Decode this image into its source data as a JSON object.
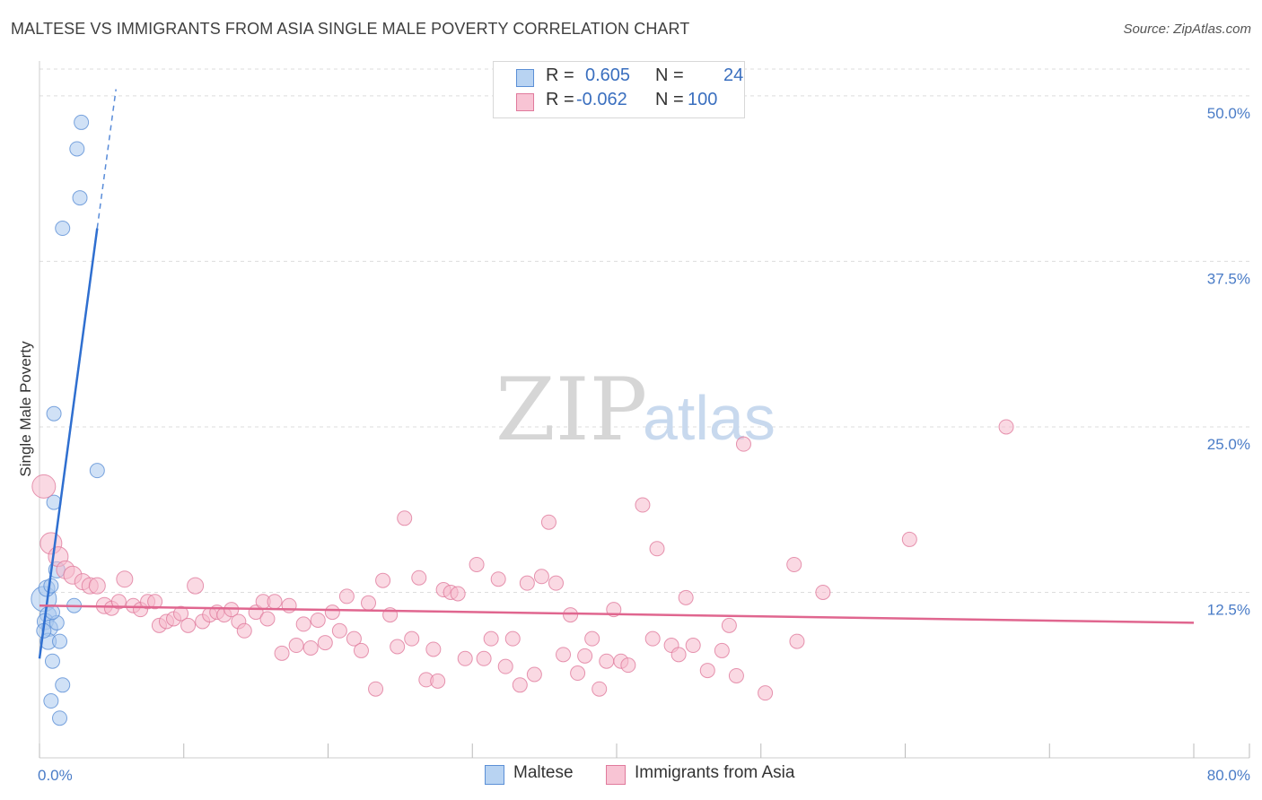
{
  "title": "MALTESE VS IMMIGRANTS FROM ASIA SINGLE MALE POVERTY CORRELATION CHART",
  "source": "Source: ZipAtlas.com",
  "watermark": {
    "zip": "ZIP",
    "atlas": "atlas"
  },
  "legend_top": {
    "r_label": "R =",
    "n_label": "N =",
    "rows": [
      {
        "r": "0.605",
        "n": "24",
        "color": "#a9c8ef",
        "edge": "#5b8fd6"
      },
      {
        "r": "-0.062",
        "n": "100",
        "color": "#f6b9cc",
        "edge": "#e07a9c"
      }
    ]
  },
  "legend_bottom": [
    {
      "label": "Maltese",
      "color": "#b8d3f2",
      "edge": "#5b8fd6"
    },
    {
      "label": "Immigrants from Asia",
      "color": "#f8c4d4",
      "edge": "#e07a9c"
    }
  ],
  "chart_data": {
    "type": "scatter",
    "title": "MALTESE VS IMMIGRANTS FROM ASIA SINGLE MALE POVERTY CORRELATION CHART",
    "xlabel": "",
    "ylabel": "Single Male Poverty",
    "xlim": [
      0,
      80
    ],
    "ylim": [
      0,
      52.5
    ],
    "x_tick_labels": [
      "0.0%",
      "80.0%"
    ],
    "y_ticks": [
      {
        "value": 12.5,
        "label": "12.5%"
      },
      {
        "value": 25.0,
        "label": "25.0%"
      },
      {
        "value": 37.5,
        "label": "37.5%"
      },
      {
        "value": 50.0,
        "label": "50.0%"
      }
    ],
    "grid": true,
    "series": [
      {
        "name": "Maltese",
        "color": "#a9c8ef",
        "edge": "#5b8fd6",
        "trend": {
          "x0": 0.0,
          "y0": 7.5,
          "x1": 4.0,
          "y1": 40.0,
          "dash_x1": 5.3,
          "dash_y1": 50.5,
          "color": "#2f6fd0"
        },
        "points": [
          {
            "x": 0.3,
            "y": 12.0,
            "s": 14
          },
          {
            "x": 0.5,
            "y": 12.8,
            "s": 9
          },
          {
            "x": 0.6,
            "y": 10.8,
            "s": 9
          },
          {
            "x": 0.4,
            "y": 10.3,
            "s": 9
          },
          {
            "x": 0.7,
            "y": 9.8,
            "s": 9
          },
          {
            "x": 0.6,
            "y": 8.8,
            "s": 9
          },
          {
            "x": 0.8,
            "y": 13.0,
            "s": 8
          },
          {
            "x": 1.2,
            "y": 14.2,
            "s": 9
          },
          {
            "x": 1.2,
            "y": 10.2,
            "s": 8
          },
          {
            "x": 1.0,
            "y": 19.3,
            "s": 8
          },
          {
            "x": 1.0,
            "y": 26.0,
            "s": 8
          },
          {
            "x": 1.6,
            "y": 40.0,
            "s": 8
          },
          {
            "x": 2.8,
            "y": 42.3,
            "s": 8
          },
          {
            "x": 2.6,
            "y": 46.0,
            "s": 8
          },
          {
            "x": 2.9,
            "y": 48.0,
            "s": 8
          },
          {
            "x": 4.0,
            "y": 21.7,
            "s": 8
          },
          {
            "x": 2.4,
            "y": 11.5,
            "s": 8
          },
          {
            "x": 1.4,
            "y": 8.8,
            "s": 8
          },
          {
            "x": 0.9,
            "y": 7.3,
            "s": 8
          },
          {
            "x": 1.6,
            "y": 5.5,
            "s": 8
          },
          {
            "x": 0.8,
            "y": 4.3,
            "s": 8
          },
          {
            "x": 1.4,
            "y": 3.0,
            "s": 8
          },
          {
            "x": 0.9,
            "y": 11.0,
            "s": 8
          },
          {
            "x": 0.3,
            "y": 9.6,
            "s": 8
          }
        ]
      },
      {
        "name": "Immigrants from Asia",
        "color": "#f6b9cc",
        "edge": "#e07a9c",
        "trend": {
          "x0": 0.0,
          "y0": 11.5,
          "x1": 80.0,
          "y1": 10.2,
          "color": "#e0668f"
        },
        "points": [
          {
            "x": 0.3,
            "y": 20.5,
            "s": 13
          },
          {
            "x": 0.8,
            "y": 16.2,
            "s": 12
          },
          {
            "x": 1.3,
            "y": 15.2,
            "s": 11
          },
          {
            "x": 1.8,
            "y": 14.2,
            "s": 10
          },
          {
            "x": 2.3,
            "y": 13.8,
            "s": 10
          },
          {
            "x": 3.0,
            "y": 13.3,
            "s": 9
          },
          {
            "x": 3.5,
            "y": 13.0,
            "s": 9
          },
          {
            "x": 4.0,
            "y": 13.0,
            "s": 9
          },
          {
            "x": 5.9,
            "y": 13.5,
            "s": 9
          },
          {
            "x": 10.8,
            "y": 13.0,
            "s": 9
          },
          {
            "x": 4.5,
            "y": 11.5,
            "s": 9
          },
          {
            "x": 5.0,
            "y": 11.3,
            "s": 8
          },
          {
            "x": 5.5,
            "y": 11.8,
            "s": 8
          },
          {
            "x": 6.5,
            "y": 11.5,
            "s": 8
          },
          {
            "x": 7.0,
            "y": 11.2,
            "s": 8
          },
          {
            "x": 7.5,
            "y": 11.8,
            "s": 8
          },
          {
            "x": 8.0,
            "y": 11.8,
            "s": 8
          },
          {
            "x": 8.3,
            "y": 10.0,
            "s": 8
          },
          {
            "x": 8.8,
            "y": 10.3,
            "s": 8
          },
          {
            "x": 9.3,
            "y": 10.5,
            "s": 8
          },
          {
            "x": 9.8,
            "y": 10.9,
            "s": 8
          },
          {
            "x": 10.3,
            "y": 10.0,
            "s": 8
          },
          {
            "x": 11.3,
            "y": 10.3,
            "s": 8
          },
          {
            "x": 11.8,
            "y": 10.8,
            "s": 8
          },
          {
            "x": 12.3,
            "y": 11.0,
            "s": 8
          },
          {
            "x": 12.8,
            "y": 10.8,
            "s": 8
          },
          {
            "x": 13.3,
            "y": 11.2,
            "s": 8
          },
          {
            "x": 13.8,
            "y": 10.3,
            "s": 8
          },
          {
            "x": 14.2,
            "y": 9.6,
            "s": 8
          },
          {
            "x": 15.0,
            "y": 11.0,
            "s": 8
          },
          {
            "x": 15.5,
            "y": 11.8,
            "s": 8
          },
          {
            "x": 15.8,
            "y": 10.5,
            "s": 8
          },
          {
            "x": 16.3,
            "y": 11.8,
            "s": 8
          },
          {
            "x": 16.8,
            "y": 7.9,
            "s": 8
          },
          {
            "x": 17.3,
            "y": 11.5,
            "s": 8
          },
          {
            "x": 17.8,
            "y": 8.5,
            "s": 8
          },
          {
            "x": 18.3,
            "y": 10.1,
            "s": 8
          },
          {
            "x": 18.8,
            "y": 8.3,
            "s": 8
          },
          {
            "x": 19.3,
            "y": 10.4,
            "s": 8
          },
          {
            "x": 19.8,
            "y": 8.7,
            "s": 8
          },
          {
            "x": 20.3,
            "y": 11.0,
            "s": 8
          },
          {
            "x": 20.8,
            "y": 9.6,
            "s": 8
          },
          {
            "x": 21.3,
            "y": 12.2,
            "s": 8
          },
          {
            "x": 21.8,
            "y": 9.0,
            "s": 8
          },
          {
            "x": 22.3,
            "y": 8.1,
            "s": 8
          },
          {
            "x": 22.8,
            "y": 11.7,
            "s": 8
          },
          {
            "x": 23.3,
            "y": 5.2,
            "s": 8
          },
          {
            "x": 23.8,
            "y": 13.4,
            "s": 8
          },
          {
            "x": 24.3,
            "y": 10.8,
            "s": 8
          },
          {
            "x": 24.8,
            "y": 8.4,
            "s": 8
          },
          {
            "x": 25.3,
            "y": 18.1,
            "s": 8
          },
          {
            "x": 25.8,
            "y": 9.0,
            "s": 8
          },
          {
            "x": 26.3,
            "y": 13.6,
            "s": 8
          },
          {
            "x": 26.8,
            "y": 5.9,
            "s": 8
          },
          {
            "x": 27.3,
            "y": 8.2,
            "s": 8
          },
          {
            "x": 27.6,
            "y": 5.8,
            "s": 8
          },
          {
            "x": 28.0,
            "y": 12.7,
            "s": 8
          },
          {
            "x": 28.5,
            "y": 12.5,
            "s": 8
          },
          {
            "x": 29.0,
            "y": 12.4,
            "s": 8
          },
          {
            "x": 29.5,
            "y": 7.5,
            "s": 8
          },
          {
            "x": 30.3,
            "y": 14.6,
            "s": 8
          },
          {
            "x": 30.8,
            "y": 7.5,
            "s": 8
          },
          {
            "x": 31.3,
            "y": 9.0,
            "s": 8
          },
          {
            "x": 31.8,
            "y": 13.5,
            "s": 8
          },
          {
            "x": 32.3,
            "y": 6.9,
            "s": 8
          },
          {
            "x": 32.8,
            "y": 9.0,
            "s": 8
          },
          {
            "x": 33.3,
            "y": 5.5,
            "s": 8
          },
          {
            "x": 33.8,
            "y": 13.2,
            "s": 8
          },
          {
            "x": 34.3,
            "y": 6.3,
            "s": 8
          },
          {
            "x": 34.8,
            "y": 13.7,
            "s": 8
          },
          {
            "x": 35.3,
            "y": 17.8,
            "s": 8
          },
          {
            "x": 35.8,
            "y": 13.2,
            "s": 8
          },
          {
            "x": 36.3,
            "y": 7.8,
            "s": 8
          },
          {
            "x": 36.8,
            "y": 10.8,
            "s": 8
          },
          {
            "x": 37.3,
            "y": 6.4,
            "s": 8
          },
          {
            "x": 37.8,
            "y": 7.7,
            "s": 8
          },
          {
            "x": 38.3,
            "y": 9.0,
            "s": 8
          },
          {
            "x": 38.8,
            "y": 5.2,
            "s": 8
          },
          {
            "x": 39.3,
            "y": 7.3,
            "s": 8
          },
          {
            "x": 39.8,
            "y": 11.2,
            "s": 8
          },
          {
            "x": 40.3,
            "y": 7.3,
            "s": 8
          },
          {
            "x": 40.8,
            "y": 7.0,
            "s": 8
          },
          {
            "x": 41.8,
            "y": 19.1,
            "s": 8
          },
          {
            "x": 42.5,
            "y": 9.0,
            "s": 8
          },
          {
            "x": 42.8,
            "y": 15.8,
            "s": 8
          },
          {
            "x": 43.8,
            "y": 8.5,
            "s": 8
          },
          {
            "x": 44.3,
            "y": 7.8,
            "s": 8
          },
          {
            "x": 44.8,
            "y": 12.1,
            "s": 8
          },
          {
            "x": 45.3,
            "y": 8.5,
            "s": 8
          },
          {
            "x": 46.3,
            "y": 6.6,
            "s": 8
          },
          {
            "x": 47.3,
            "y": 8.1,
            "s": 8
          },
          {
            "x": 47.8,
            "y": 10.0,
            "s": 8
          },
          {
            "x": 48.3,
            "y": 6.2,
            "s": 8
          },
          {
            "x": 48.8,
            "y": 23.7,
            "s": 8
          },
          {
            "x": 50.3,
            "y": 4.9,
            "s": 8
          },
          {
            "x": 52.3,
            "y": 14.6,
            "s": 8
          },
          {
            "x": 52.5,
            "y": 8.8,
            "s": 8
          },
          {
            "x": 54.3,
            "y": 12.5,
            "s": 8
          },
          {
            "x": 60.3,
            "y": 16.5,
            "s": 8
          },
          {
            "x": 67.0,
            "y": 25.0,
            "s": 8
          }
        ]
      }
    ]
  }
}
